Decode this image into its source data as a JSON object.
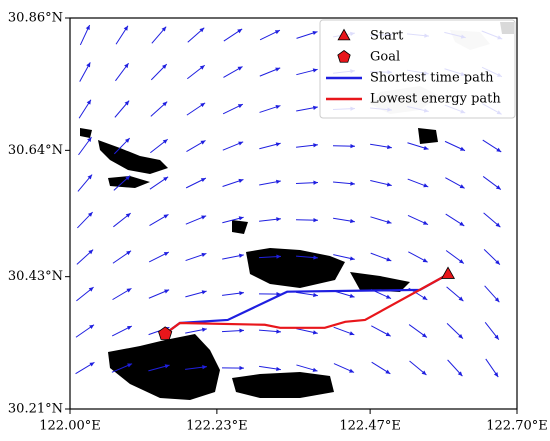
{
  "chart_data": {
    "type": "map",
    "xlim": [
      122.0,
      122.7
    ],
    "ylim": [
      30.21,
      30.86
    ],
    "xticks": [
      {
        "value": 122.0,
        "label": "122.00°E"
      },
      {
        "value": 122.23,
        "label": "122.23°E"
      },
      {
        "value": 122.47,
        "label": "122.47°E"
      },
      {
        "value": 122.7,
        "label": "122.70°E"
      }
    ],
    "yticks": [
      {
        "value": 30.21,
        "label": "30.21°N"
      },
      {
        "value": 30.43,
        "label": "30.43°N"
      },
      {
        "value": 30.64,
        "label": "30.64°N"
      },
      {
        "value": 30.86,
        "label": "30.86°N"
      }
    ],
    "legend": "upper right",
    "series": [
      {
        "name": "Start",
        "color": "#e8161b",
        "marker": "triangle",
        "x": [
          122.592
        ],
        "y": [
          30.434
        ]
      },
      {
        "name": "Goal",
        "color": "#e8161b",
        "marker": "pentagon",
        "x": [
          122.149
        ],
        "y": [
          30.335
        ]
      },
      {
        "name": "Shortest time path",
        "color": "#1f1fe0",
        "marker": "line",
        "x": [
          122.592,
          122.548,
          122.34,
          122.247,
          122.172,
          122.149
        ],
        "y": [
          30.434,
          30.408,
          30.405,
          30.358,
          30.353,
          30.335
        ]
      },
      {
        "name": "Lowest energy path",
        "color": "#e8161b",
        "marker": "line",
        "x": [
          122.592,
          122.462,
          122.431,
          122.399,
          122.329,
          122.305,
          122.172,
          122.149
        ],
        "y": [
          30.434,
          30.358,
          30.355,
          30.345,
          30.345,
          30.35,
          30.353,
          30.335
        ]
      }
    ]
  }
}
